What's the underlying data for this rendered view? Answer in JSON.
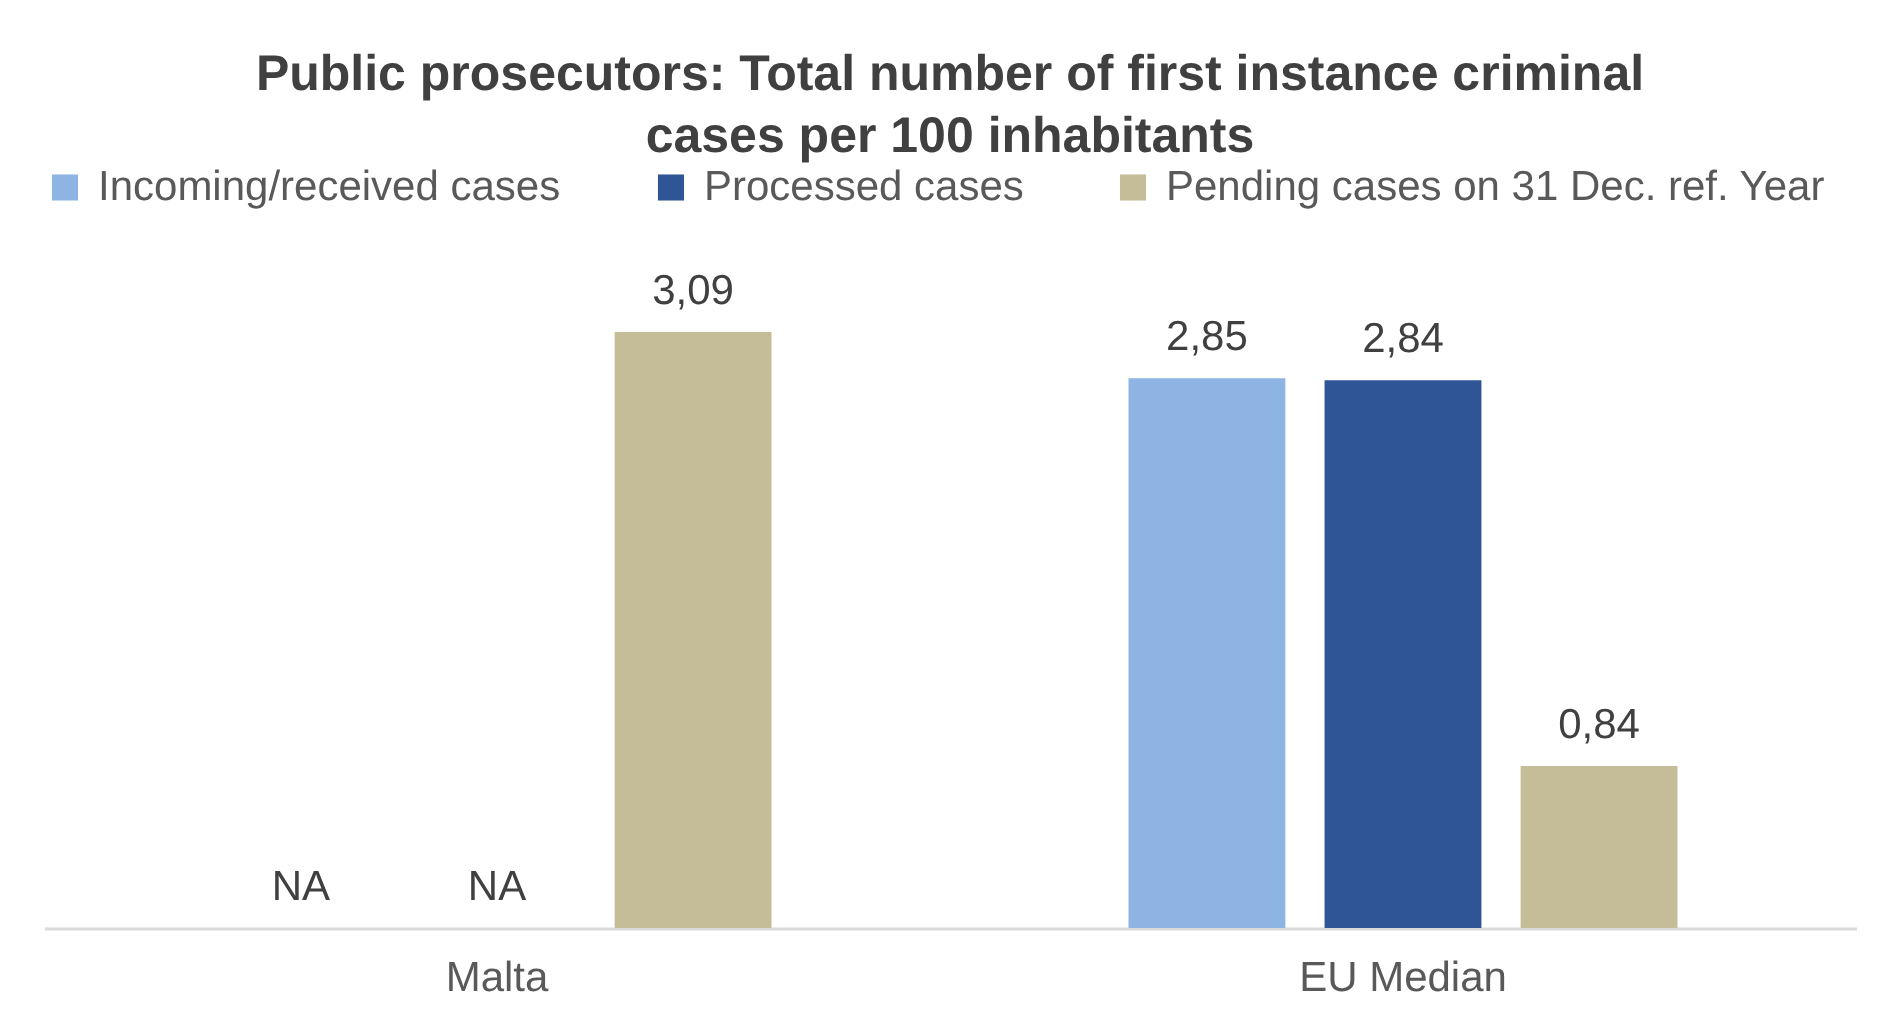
{
  "chart_data": {
    "type": "bar",
    "title": "Public prosecutors: Total number of first instance criminal cases per 100 inhabitants",
    "categories": [
      "Malta",
      "EU Median"
    ],
    "series": [
      {
        "name": "Incoming/received cases",
        "color": "#8eb4e3",
        "values": [
          null,
          2.85
        ],
        "value_labels": [
          "NA",
          "2,85"
        ]
      },
      {
        "name": "Processed cases",
        "color": "#2f5597",
        "values": [
          null,
          2.84
        ],
        "value_labels": [
          "NA",
          "2,84"
        ]
      },
      {
        "name": "Pending cases on 31 Dec. ref. Year",
        "color": "#c4bd97",
        "values": [
          3.09,
          0.84
        ],
        "value_labels": [
          "3,09",
          "0,84"
        ]
      }
    ],
    "legend": "top",
    "tick_labels": "x"
  }
}
